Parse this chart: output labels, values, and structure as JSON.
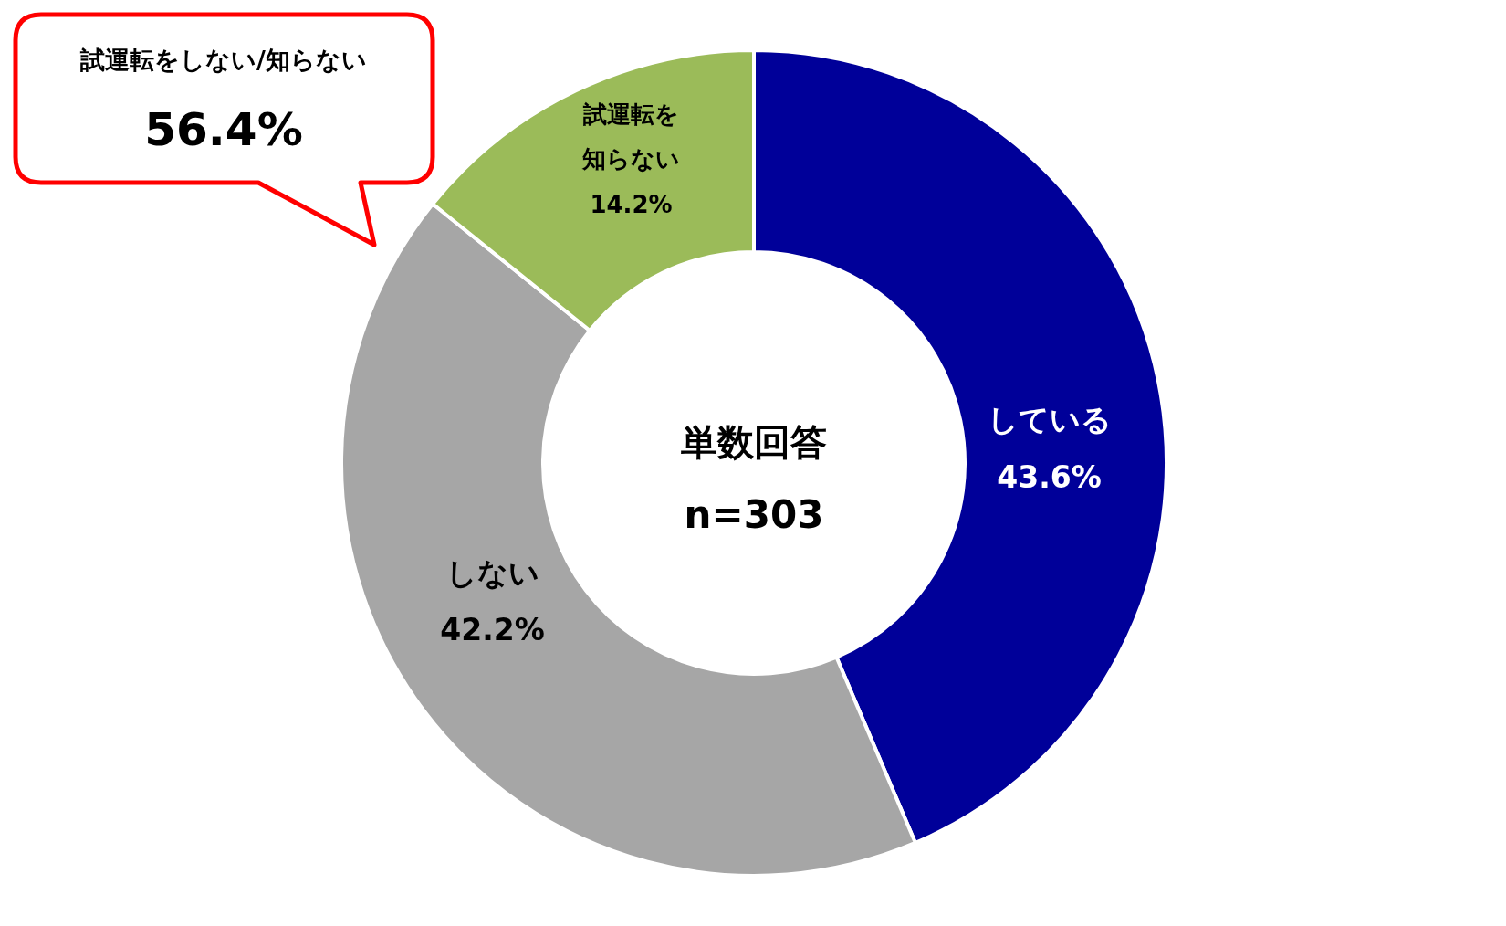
{
  "chart_data": {
    "type": "donut",
    "categories": [
      "している",
      "しない",
      "試運転を知らない"
    ],
    "values": [
      43.6,
      42.2,
      14.2
    ],
    "colors": [
      "#000099",
      "#a6a6a6",
      "#9bbb59"
    ],
    "value_labels": [
      "43.6%",
      "42.2%",
      "14.2%"
    ],
    "annotations": [
      "単数回答",
      "n=303",
      "試運転をしない/知らない",
      "56.4%"
    ]
  }
}
